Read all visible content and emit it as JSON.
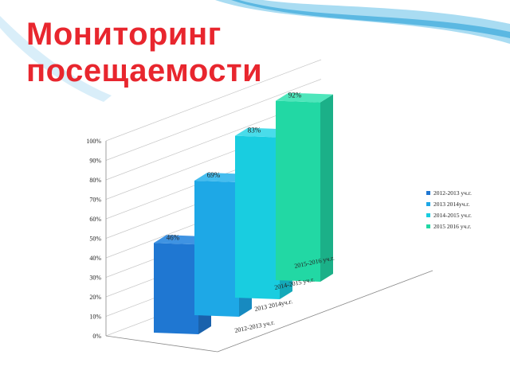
{
  "slide": {
    "title_line1": "Мониторинг",
    "title_line2": "посещаемости"
  },
  "colors": {
    "title": "#e8262e",
    "swoosh_light": "#a9dcf2",
    "swoosh_dark": "#5bb8e2"
  },
  "chart_data": {
    "type": "bar",
    "style": "3d-column",
    "categories": [
      "2012-2013 уч.г.",
      "2013 2014уч.г.",
      "2014-2015 уч.г.",
      "2015-2016 уч.г."
    ],
    "values": [
      46,
      69,
      83,
      92
    ],
    "data_labels": [
      "46%",
      "69%",
      "83%",
      "92%"
    ],
    "y_ticks": [
      "0%",
      "10%",
      "20%",
      "30%",
      "40%",
      "50%",
      "60%",
      "70%",
      "80%",
      "90%",
      "100%"
    ],
    "ylim": [
      0,
      100
    ],
    "grid": true,
    "legend": {
      "position": "right",
      "entries": [
        {
          "label": "2012-2013 уч.г.",
          "color": "#1f77d2"
        },
        {
          "label": "2013 2014уч.г.",
          "color": "#1ea8e6"
        },
        {
          "label": "2014-2015 уч.г.",
          "color": "#19cde0"
        },
        {
          "label": "2015 2016 уч.г.",
          "color": "#22d8a4"
        }
      ]
    },
    "series_colors": [
      {
        "front": "#1f77d2",
        "side": "#1a62ac",
        "top": "#3f93e2"
      },
      {
        "front": "#1ea8e6",
        "side": "#178ac0",
        "top": "#45bdef"
      },
      {
        "front": "#19cde0",
        "side": "#14a9b9",
        "top": "#49dcea"
      },
      {
        "front": "#22d8a4",
        "side": "#1bb088",
        "top": "#4ee6bb"
      }
    ]
  }
}
